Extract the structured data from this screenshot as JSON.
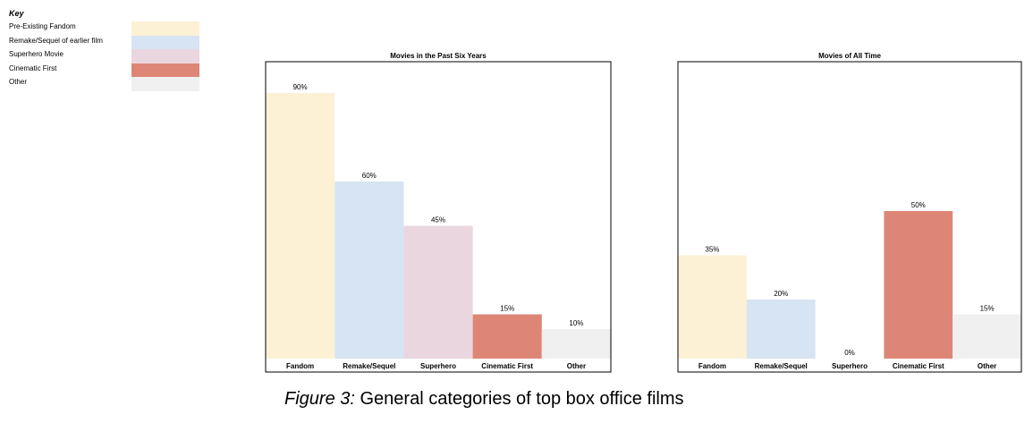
{
  "key": {
    "title": "Key",
    "items": [
      {
        "label": "Pre-Existing Fandom",
        "color": "#fcf1d4"
      },
      {
        "label": "Remake/Sequel of earlier film",
        "color": "#d6e4f3"
      },
      {
        "label": "Superhero Movie",
        "color": "#ead6df"
      },
      {
        "label": "Cinematic First",
        "color": "#de8676"
      },
      {
        "label": "Other",
        "color": "#f0f0f0"
      }
    ]
  },
  "chart_data": [
    {
      "type": "bar",
      "title": "Movies in the Past Six Years",
      "categories": [
        "Fandom",
        "Remake/Sequel",
        "Superhero",
        "Cinematic First",
        "Other"
      ],
      "values": [
        90,
        60,
        45,
        15,
        10
      ],
      "value_labels": [
        "90%",
        "60%",
        "45%",
        "15%",
        "10%"
      ],
      "colors": [
        "#fcf1d4",
        "#d6e4f3",
        "#ead6df",
        "#de8676",
        "#f0f0f0"
      ],
      "ylim": [
        0,
        100
      ],
      "grid": false,
      "legend": "separate key at top-left"
    },
    {
      "type": "bar",
      "title": "Movies of All Time",
      "categories": [
        "Fandom",
        "Remake/Sequel",
        "Superhero",
        "Cinematic First",
        "Other"
      ],
      "values": [
        35,
        20,
        0,
        50,
        15
      ],
      "value_labels": [
        "35%",
        "20%",
        "0%",
        "50%",
        "15%"
      ],
      "colors": [
        "#fcf1d4",
        "#d6e4f3",
        "#ead6df",
        "#de8676",
        "#f0f0f0"
      ],
      "ylim": [
        0,
        100
      ],
      "grid": false,
      "legend": "separate key at top-left"
    }
  ],
  "caption": {
    "prefix": "Figure 3:",
    "text": " General categories of top box office films"
  }
}
